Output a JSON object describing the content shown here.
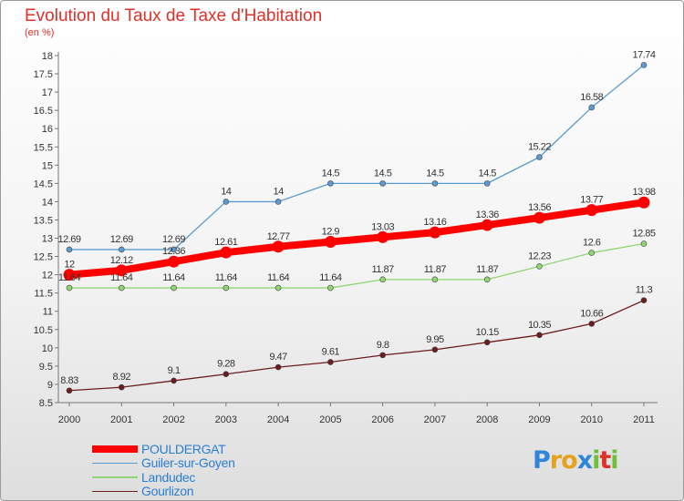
{
  "title": "Evolution du Taux de Taxe d'Habitation",
  "unit_label": "(en %)",
  "logo": {
    "letters": [
      {
        "ch": "P",
        "color": "#2f86d8"
      },
      {
        "ch": "r",
        "color": "#e6a21d"
      },
      {
        "ch": "o",
        "color": "#e6a21d"
      },
      {
        "ch": "x",
        "color": "#2f86d8"
      },
      {
        "ch": "i",
        "color": "#6fbf3a"
      },
      {
        "ch": "t",
        "color": "#e0302a"
      },
      {
        "ch": "i",
        "color": "#6fbf3a"
      }
    ]
  },
  "chart_data": {
    "type": "line",
    "title": "Evolution du Taux de Taxe d'Habitation",
    "ylabel": "(en %)",
    "xlabel": "",
    "x": [
      "2000",
      "2001",
      "2002",
      "2003",
      "2004",
      "2005",
      "2006",
      "2007",
      "2008",
      "2009",
      "2010",
      "2011"
    ],
    "ylim": [
      8.5,
      18
    ],
    "yticks": [
      "8.5",
      "9",
      "9.5",
      "10",
      "10.5",
      "11",
      "11.5",
      "12",
      "12.5",
      "13",
      "13.5",
      "14",
      "14.5",
      "15",
      "15.5",
      "16",
      "16.5",
      "17",
      "17.5",
      "18"
    ],
    "grid": false,
    "legend_position": "bottom-left",
    "series": [
      {
        "name": "POULDERGAT",
        "color": "#ff0000",
        "width": "thick",
        "values": [
          12,
          12.12,
          12.36,
          12.61,
          12.77,
          12.9,
          13.03,
          13.16,
          13.36,
          13.56,
          13.77,
          13.98
        ],
        "labels": [
          "12",
          "12.12",
          "12.36",
          "12.61",
          "12.77",
          "12.9",
          "13.03",
          "13.16",
          "13.36",
          "13.56",
          "13.77",
          "13.98"
        ]
      },
      {
        "name": "Guiler-sur-Goyen",
        "color": "#5a9bd4",
        "width": "thin",
        "values": [
          12.69,
          12.69,
          12.69,
          14,
          14,
          14.5,
          14.5,
          14.5,
          14.5,
          15.22,
          16.58,
          17.74
        ],
        "labels": [
          "12.69",
          "12.69",
          "12.69",
          "14",
          "14",
          "14.5",
          "14.5",
          "14.5",
          "14.5",
          "15.22",
          "16.58",
          "17.74"
        ]
      },
      {
        "name": "Landudec",
        "color": "#8fd672",
        "width": "thin",
        "values": [
          11.64,
          11.64,
          11.64,
          11.64,
          11.64,
          11.64,
          11.87,
          11.87,
          11.87,
          12.23,
          12.6,
          12.85
        ],
        "labels": [
          "11.64",
          "11.64",
          "11.64",
          "11.64",
          "11.64",
          "11.64",
          "11.87",
          "11.87",
          "11.87",
          "12.23",
          "12.6",
          "12.85"
        ]
      },
      {
        "name": "Gourlizon",
        "color": "#6b1c1c",
        "width": "thin",
        "values": [
          8.83,
          8.92,
          9.1,
          9.28,
          9.47,
          9.61,
          9.8,
          9.95,
          10.15,
          10.35,
          10.66,
          11.3
        ],
        "labels": [
          "8.83",
          "8.92",
          "9.1",
          "9.28",
          "9.47",
          "9.61",
          "9.8",
          "9.95",
          "10.15",
          "10.35",
          "10.66",
          "11.3"
        ]
      }
    ]
  }
}
